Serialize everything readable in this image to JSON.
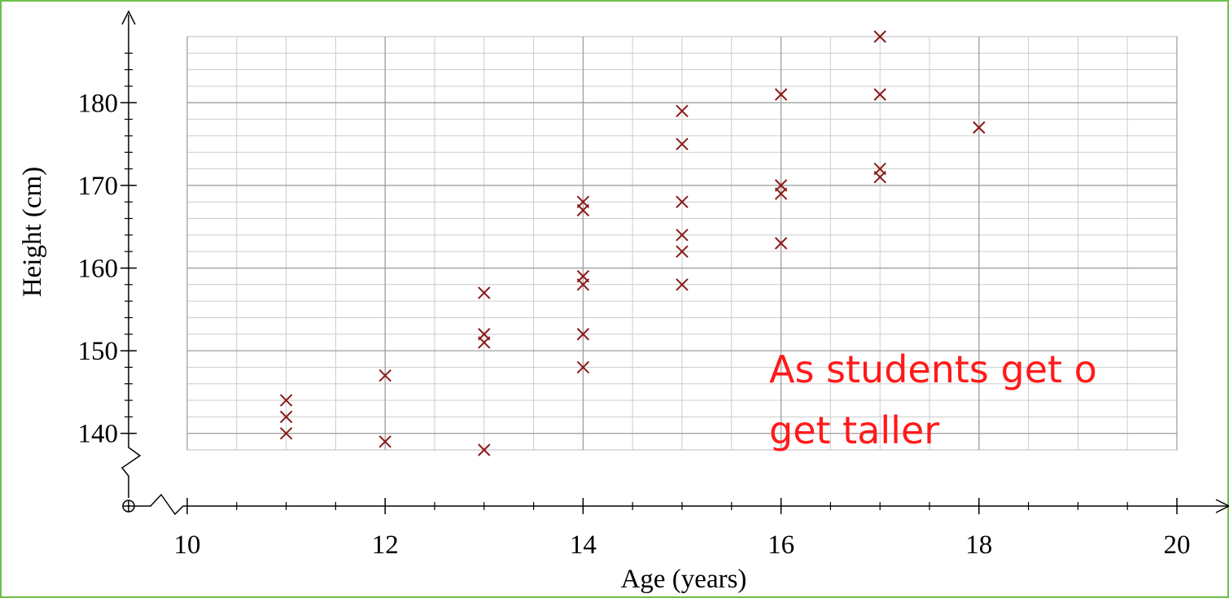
{
  "chart_data": {
    "type": "scatter",
    "x_label": "Age (years)",
    "y_label": "Height (cm)",
    "x": [
      11,
      11,
      11,
      12,
      12,
      13,
      13,
      13,
      13,
      14,
      14,
      14,
      14,
      14,
      14,
      15,
      15,
      15,
      15,
      15,
      15,
      16,
      16,
      16,
      16,
      17,
      17,
      17,
      17,
      18
    ],
    "values": [
      144,
      142,
      140,
      147,
      139,
      157,
      152,
      151,
      138,
      168,
      167,
      159,
      158,
      152,
      148,
      179,
      175,
      168,
      164,
      162,
      158,
      181,
      170,
      169,
      163,
      188,
      181,
      172,
      171,
      177
    ],
    "color": "#8b1a1a",
    "xlim": [
      10,
      20
    ],
    "ylim": [
      138,
      188
    ],
    "xticks": [
      10,
      12,
      14,
      16,
      18,
      20
    ],
    "yticks": [
      140,
      150,
      160,
      170,
      180
    ],
    "grid": true,
    "annotations": [
      "As students get o",
      "get taller"
    ]
  }
}
